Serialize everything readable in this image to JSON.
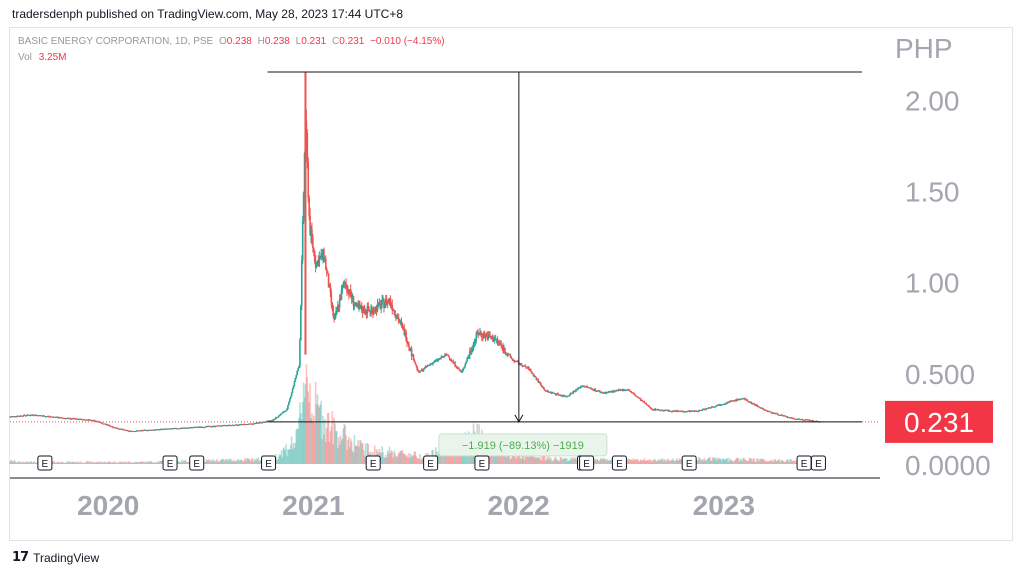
{
  "header": {
    "publish_line": "tradersdenph published on TradingView.com, May 28, 2023 17:44 UTC+8"
  },
  "legend": {
    "symbol": "BASIC ENERGY CORPORATION, 1D, PSE",
    "open_label": "O",
    "open": "0.238",
    "high_label": "H",
    "high": "0.238",
    "low_label": "L",
    "low": "0.231",
    "close_label": "C",
    "close": "0.231",
    "change": "−0.010 (−4.15%)",
    "vol_label": "Vol",
    "vol": "3.25M"
  },
  "footer": {
    "logo": "17",
    "brand": "TradingView"
  },
  "colors": {
    "up": "#26a69a",
    "down": "#ef5350",
    "price_label_bg": "#f23645",
    "measure_text": "#4caf50"
  },
  "chart_data": {
    "type": "candlestick",
    "currency": "PHP",
    "y_ticks": [
      "2.00",
      "1.50",
      "1.00",
      "0.500",
      "0.0000"
    ],
    "y_tick_values": [
      2.0,
      1.5,
      1.0,
      0.5,
      0.0
    ],
    "ylim": [
      0,
      2.15
    ],
    "x_ticks": [
      "2020",
      "2021",
      "2022",
      "2023"
    ],
    "x_tick_values": [
      2020.0,
      2021.0,
      2022.0,
      2023.0
    ],
    "xlim": [
      2019.57,
      2023.81
    ],
    "last_price": 0.231,
    "last_price_label": "0.231",
    "measurement": {
      "label": "−1.919 (−89.13%) −1919",
      "from": {
        "t": 2021.02,
        "price": 2.15
      },
      "to": {
        "t": 2022.05,
        "price": 0.231
      }
    },
    "earnings_marker_label": "E",
    "earnings_markers": [
      2019.74,
      2020.35,
      2020.48,
      2020.83,
      2021.34,
      2021.62,
      2021.87,
      2022.37,
      2022.38,
      2022.54,
      2022.88,
      2023.44,
      2023.51
    ],
    "price_path": [
      [
        2019.57,
        0.26
      ],
      [
        2019.68,
        0.27
      ],
      [
        2019.85,
        0.25
      ],
      [
        2019.98,
        0.24
      ],
      [
        2020.08,
        0.2
      ],
      [
        2020.15,
        0.18
      ],
      [
        2020.3,
        0.19
      ],
      [
        2020.45,
        0.2
      ],
      [
        2020.6,
        0.21
      ],
      [
        2020.75,
        0.22
      ],
      [
        2020.85,
        0.24
      ],
      [
        2020.92,
        0.3
      ],
      [
        2020.98,
        0.55
      ],
      [
        2021.01,
        1.9
      ],
      [
        2021.03,
        1.3
      ],
      [
        2021.06,
        1.1
      ],
      [
        2021.1,
        1.15
      ],
      [
        2021.15,
        0.78
      ],
      [
        2021.2,
        1.0
      ],
      [
        2021.26,
        0.85
      ],
      [
        2021.33,
        0.84
      ],
      [
        2021.42,
        0.9
      ],
      [
        2021.5,
        0.7
      ],
      [
        2021.56,
        0.5
      ],
      [
        2021.62,
        0.55
      ],
      [
        2021.7,
        0.6
      ],
      [
        2021.77,
        0.5
      ],
      [
        2021.85,
        0.72
      ],
      [
        2021.94,
        0.68
      ],
      [
        2022.02,
        0.57
      ],
      [
        2022.1,
        0.52
      ],
      [
        2022.18,
        0.4
      ],
      [
        2022.28,
        0.37
      ],
      [
        2022.36,
        0.43
      ],
      [
        2022.46,
        0.39
      ],
      [
        2022.58,
        0.41
      ],
      [
        2022.7,
        0.3
      ],
      [
        2022.8,
        0.29
      ],
      [
        2022.92,
        0.29
      ],
      [
        2023.04,
        0.33
      ],
      [
        2023.14,
        0.36
      ],
      [
        2023.26,
        0.29
      ],
      [
        2023.38,
        0.25
      ],
      [
        2023.46,
        0.24
      ],
      [
        2023.52,
        0.231
      ]
    ],
    "volume_path": [
      [
        2019.6,
        0.02
      ],
      [
        2020.2,
        0.02
      ],
      [
        2020.85,
        0.05
      ],
      [
        2020.97,
        0.25
      ],
      [
        2021.01,
        1.0
      ],
      [
        2021.05,
        0.6
      ],
      [
        2021.15,
        0.35
      ],
      [
        2021.3,
        0.15
      ],
      [
        2021.6,
        0.08
      ],
      [
        2021.85,
        0.3
      ],
      [
        2022.0,
        0.08
      ],
      [
        2022.3,
        0.05
      ],
      [
        2022.6,
        0.04
      ],
      [
        2023.0,
        0.05
      ],
      [
        2023.52,
        0.03
      ]
    ]
  }
}
